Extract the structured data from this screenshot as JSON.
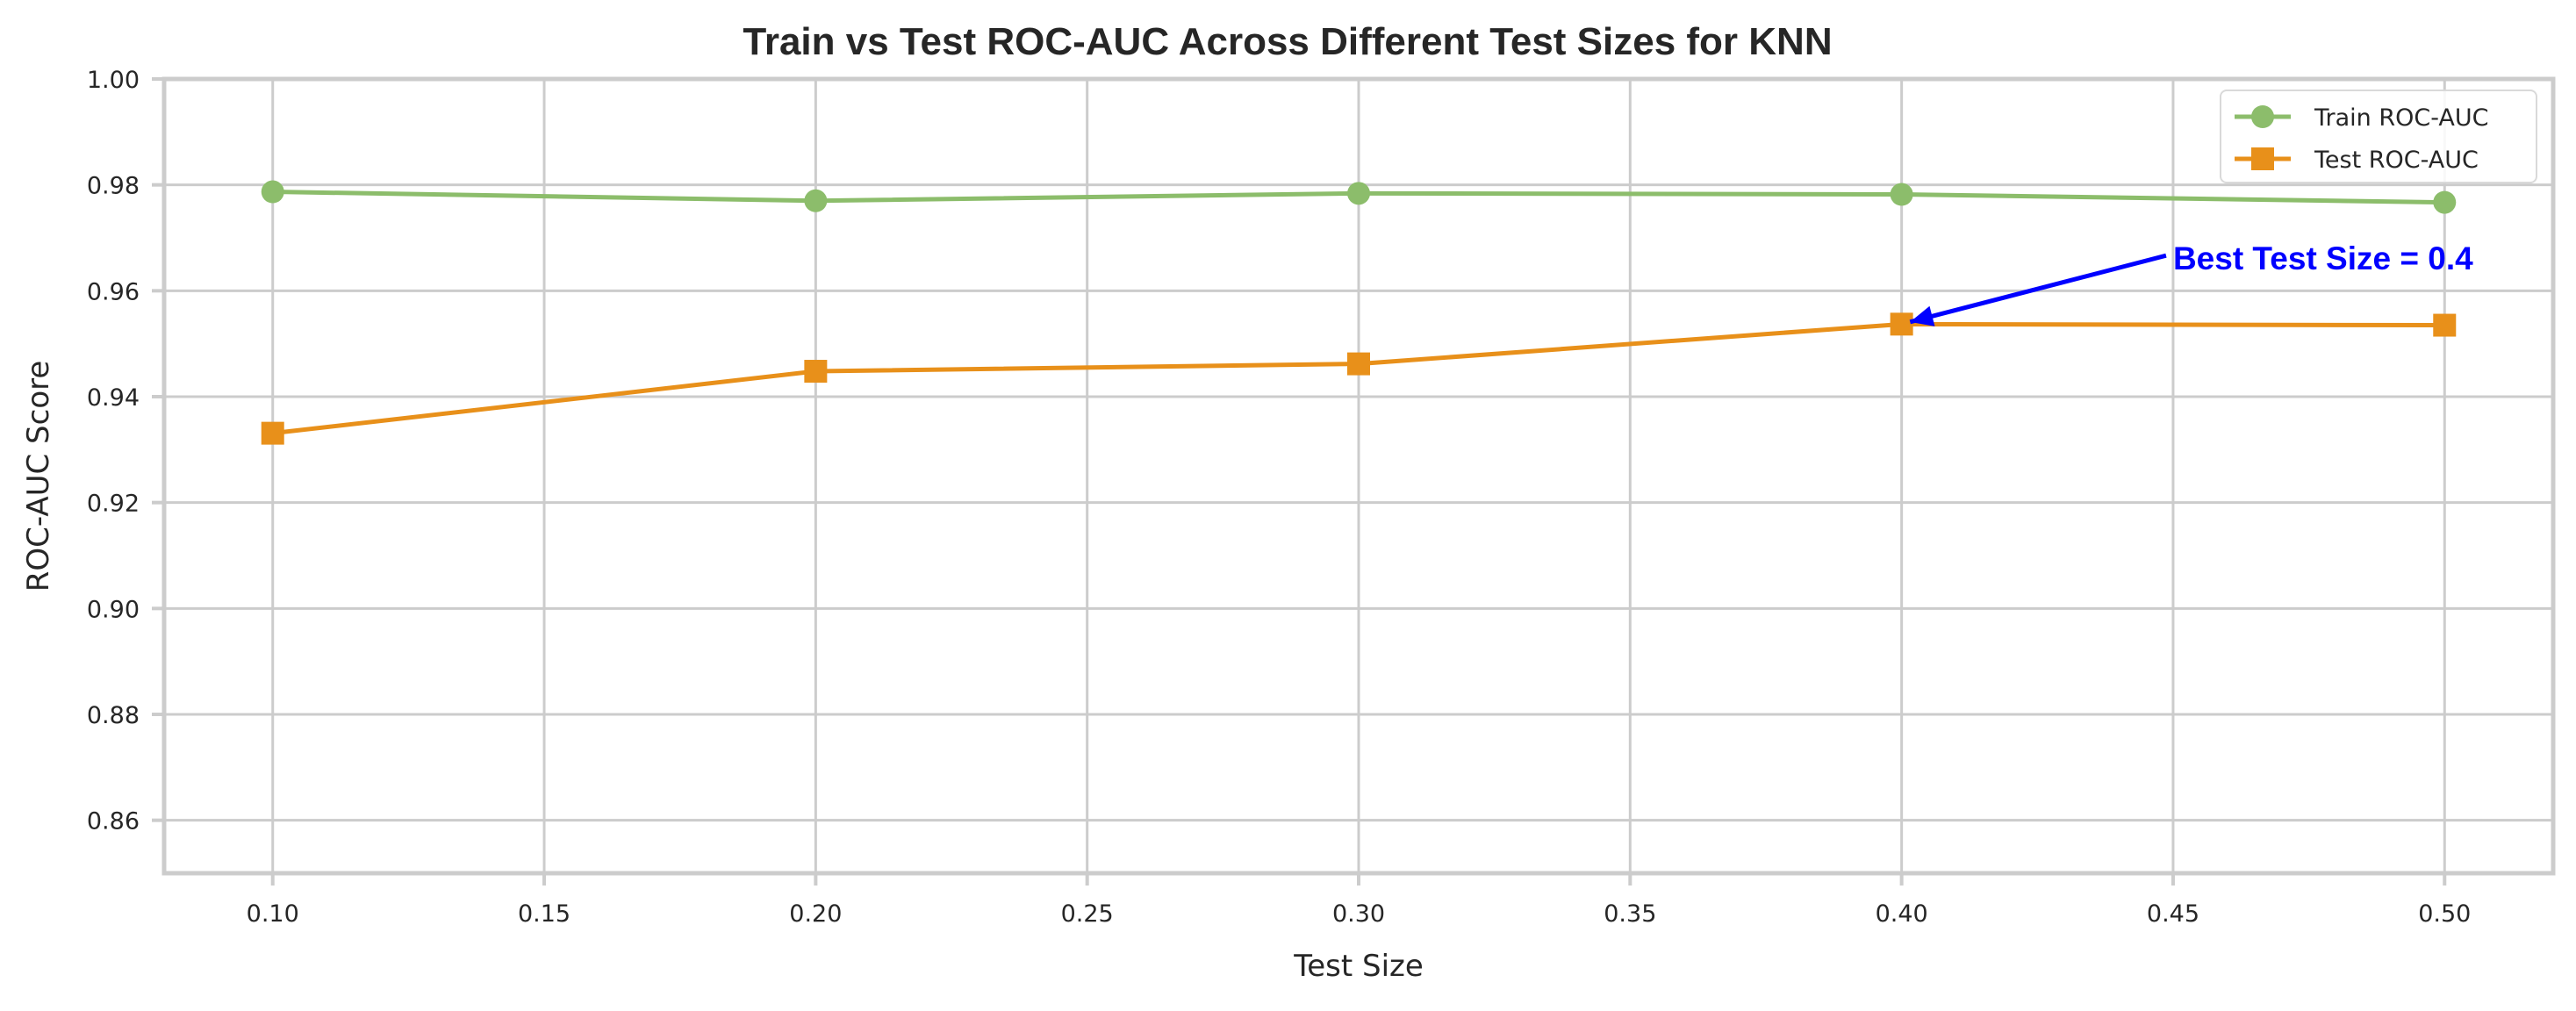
{
  "chart_data": {
    "type": "line",
    "title": "Train vs Test ROC-AUC Across Different Test Sizes for KNN",
    "xlabel": "Test Size",
    "ylabel": "ROC-AUC Score",
    "x": [
      0.1,
      0.2,
      0.3,
      0.4,
      0.5
    ],
    "xlim": [
      0.08,
      0.52
    ],
    "ylim": [
      0.85,
      1.0
    ],
    "xticks": [
      0.1,
      0.15,
      0.2,
      0.25,
      0.3,
      0.35,
      0.4,
      0.45,
      0.5
    ],
    "xtick_labels": [
      "0.10",
      "0.15",
      "0.20",
      "0.25",
      "0.30",
      "0.35",
      "0.40",
      "0.45",
      "0.50"
    ],
    "yticks": [
      0.86,
      0.88,
      0.9,
      0.92,
      0.94,
      0.96,
      0.98,
      1.0
    ],
    "ytick_labels": [
      "0.86",
      "0.88",
      "0.90",
      "0.92",
      "0.94",
      "0.96",
      "0.98",
      "1.00"
    ],
    "grid": true,
    "legend_position": "upper right",
    "series": [
      {
        "name": "Train ROC-AUC",
        "values": [
          0.9787,
          0.977,
          0.9784,
          0.9782,
          0.9767
        ],
        "color": "#8cbd6b",
        "marker": "circle"
      },
      {
        "name": "Test ROC-AUC",
        "values": [
          0.9331,
          0.9448,
          0.9462,
          0.9537,
          0.9535
        ],
        "color": "#e8901a",
        "marker": "square"
      }
    ],
    "annotation": {
      "text": "Best Test Size = 0.4",
      "point": [
        0.4,
        0.9537
      ],
      "text_pos": [
        0.45,
        0.964
      ],
      "color": "#0000ff"
    }
  }
}
